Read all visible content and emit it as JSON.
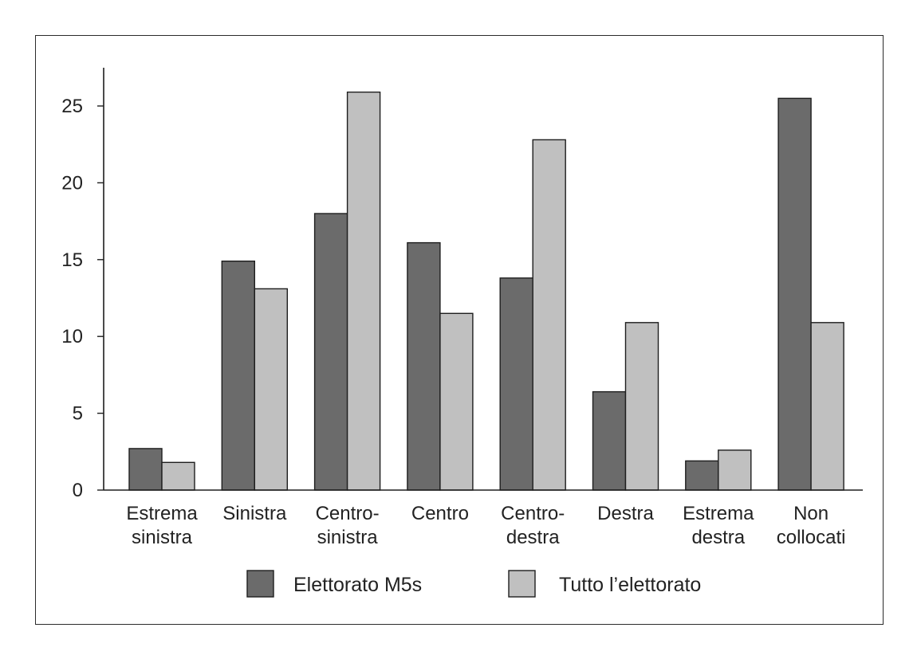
{
  "chart_data": {
    "type": "bar",
    "title": "",
    "xlabel": "",
    "ylabel": "",
    "ylim": [
      0,
      27.5
    ],
    "yticks": [
      0,
      5,
      10,
      15,
      20,
      25
    ],
    "grid": false,
    "legend_position": "bottom",
    "categories": [
      [
        "Estrema",
        "sinistra"
      ],
      [
        "Sinistra"
      ],
      [
        "Centro-",
        "sinistra"
      ],
      [
        "Centro"
      ],
      [
        "Centro-",
        "destra"
      ],
      [
        "Destra"
      ],
      [
        "Estrema",
        "destra"
      ],
      [
        "Non",
        "collocati"
      ]
    ],
    "series": [
      {
        "name": "Elettorato M5s",
        "color": "#6b6b6b",
        "values": [
          2.7,
          14.9,
          18.0,
          16.1,
          13.8,
          6.4,
          1.9,
          25.5
        ]
      },
      {
        "name": "Tutto l’elettorato",
        "color": "#c0c0c0",
        "values": [
          1.8,
          13.1,
          25.9,
          11.5,
          22.8,
          10.9,
          2.6,
          10.9
        ]
      }
    ]
  }
}
